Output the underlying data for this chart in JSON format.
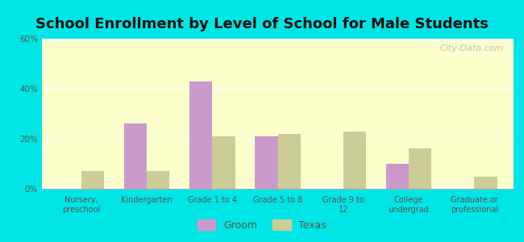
{
  "title": "School Enrollment by Level of School for Male Students",
  "categories": [
    "Nursery,\npreschool",
    "Kindergarten",
    "Grade 1 to 4",
    "Grade 5 to 8",
    "Grade 9 to\n12",
    "College\nundergrad",
    "Graduate or\nprofessional"
  ],
  "groom_values": [
    0,
    26,
    43,
    21,
    0,
    10,
    0
  ],
  "texas_values": [
    7,
    7,
    21,
    22,
    23,
    16,
    5
  ],
  "groom_color": "#cc99cc",
  "texas_color": "#cccc99",
  "ylim": [
    0,
    60
  ],
  "yticks": [
    0,
    20,
    40,
    60
  ],
  "ytick_labels": [
    "0%",
    "20%",
    "40%",
    "60%"
  ],
  "background_color": "#00e5e5",
  "title_fontsize": 13,
  "bar_width": 0.35,
  "legend_labels": [
    "Groom",
    "Texas"
  ],
  "watermark": "City-Data.com"
}
